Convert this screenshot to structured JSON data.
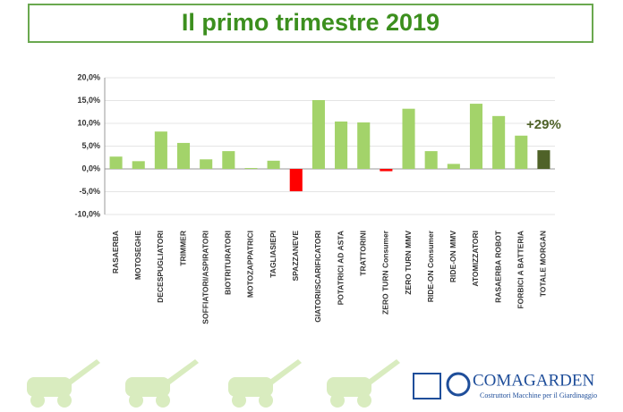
{
  "chart_data": {
    "type": "bar",
    "title": "Il primo trimestre 2019",
    "categories": [
      "RASAERBA",
      "MOTOSEGHE",
      "DECESPUGLIATORI",
      "TRIMMER",
      "SOFFIATORI/ASPIRATORI",
      "BIOTRITURATORI",
      "MOTOZAPPATRICI",
      "TAGLIASIEPI",
      "SPAZZANEVE",
      "GIATORI/SCARIFICATORI",
      "POTATRICI AD ASTA",
      "TRATTORINI",
      "ZERO TURN Consumer",
      "ZERO TURN MMV",
      "RIDE-ON Consumer",
      "RIDE-ON MMV",
      "ATOMIZZATORI",
      "RASAERBA ROBOT",
      "FORBICI A BATTERIA",
      "TOTALE MORGAN"
    ],
    "values": [
      2.7,
      1.7,
      8.2,
      5.7,
      2.1,
      3.9,
      0.2,
      1.8,
      -4.9,
      15.1,
      10.4,
      10.2,
      -0.5,
      13.2,
      3.9,
      1.1,
      14.3,
      11.6,
      7.3,
      4.1
    ],
    "colors": [
      "#a3d36a",
      "#a3d36a",
      "#a3d36a",
      "#a3d36a",
      "#a3d36a",
      "#a3d36a",
      "#a3d36a",
      "#a3d36a",
      "#ff0000",
      "#a3d36a",
      "#a3d36a",
      "#a3d36a",
      "#ff0000",
      "#a3d36a",
      "#a3d36a",
      "#a3d36a",
      "#a3d36a",
      "#a3d36a",
      "#a3d36a",
      "#4f6228"
    ],
    "ylim": [
      -10,
      20
    ],
    "yticks": [
      {
        "value": -10,
        "label": "-10,0%"
      },
      {
        "value": -5,
        "label": "-5,0%"
      },
      {
        "value": 0,
        "label": "0,0%"
      },
      {
        "value": 5,
        "label": "5,0%"
      },
      {
        "value": 10,
        "label": "10,0%"
      },
      {
        "value": 15,
        "label": "15,0%"
      },
      {
        "value": 20,
        "label": "20,0%"
      }
    ],
    "grid": true,
    "annotation": "+29%"
  },
  "logo": {
    "name": "COMAGARDEN",
    "tagline": "Costruttori Macchine per il Giardinaggio"
  }
}
